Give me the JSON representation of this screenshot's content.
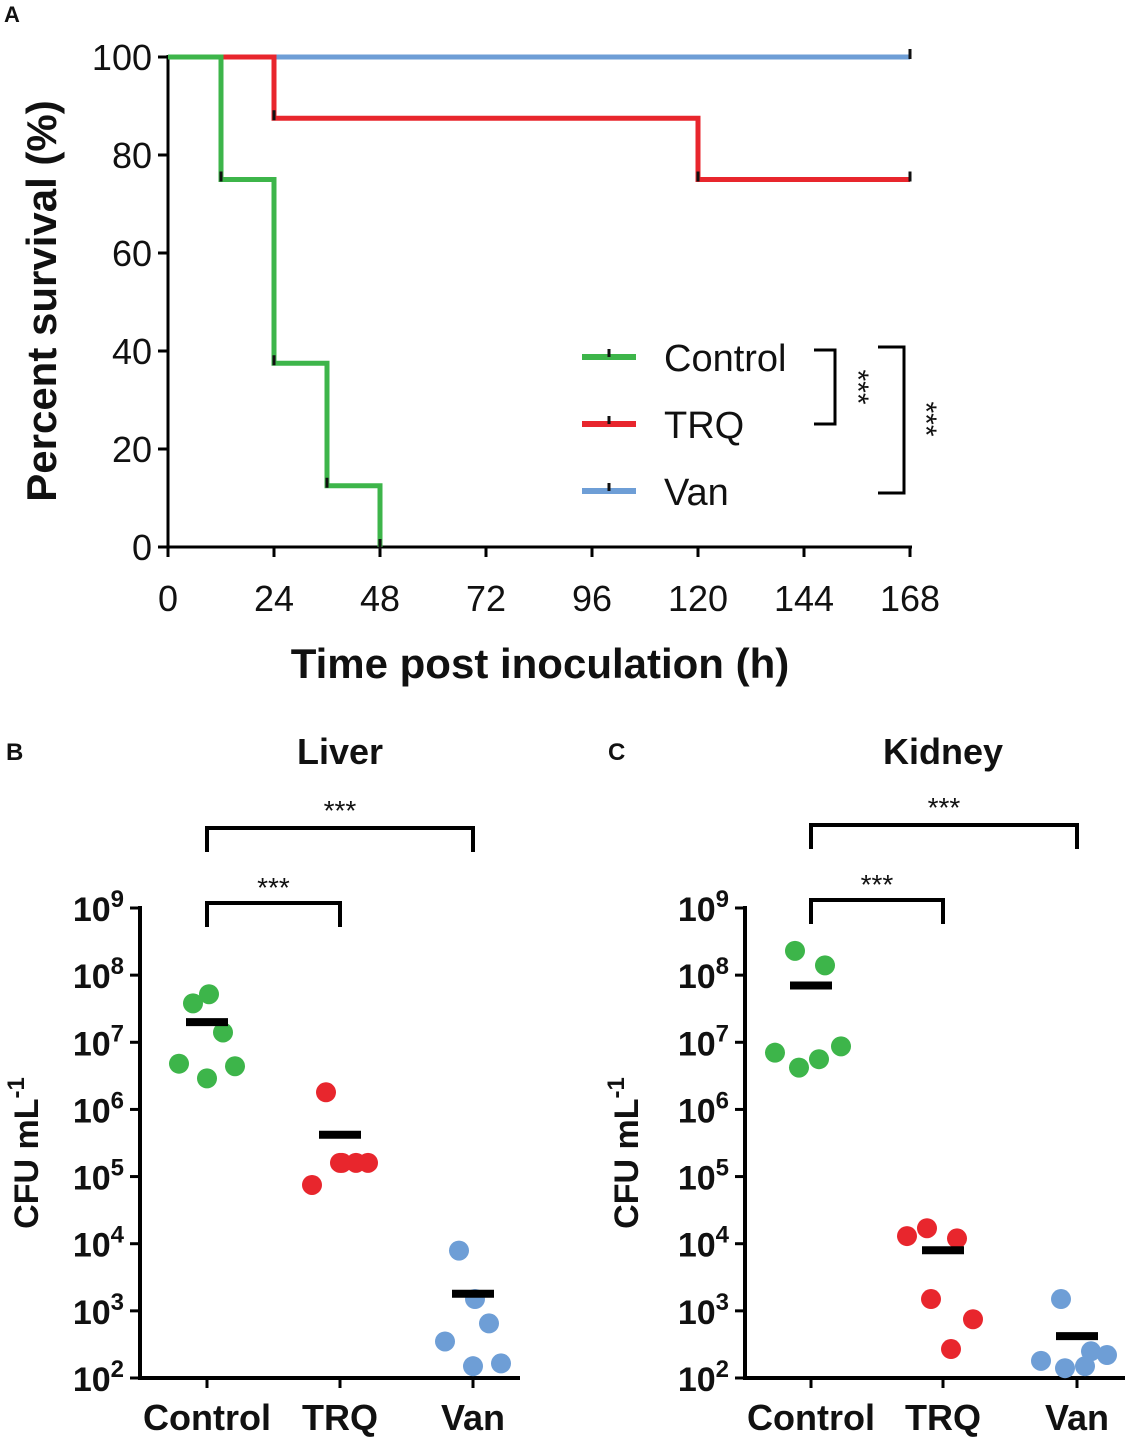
{
  "chart_data": [
    {
      "panel": "A",
      "type": "line",
      "subtype": "kaplan-meier",
      "title": "",
      "xlabel": "Time post inoculation (h)",
      "ylabel": "Percent survival (%)",
      "xlim": [
        0,
        168
      ],
      "ylim": [
        0,
        100
      ],
      "xticks": [
        0,
        24,
        48,
        72,
        96,
        120,
        144,
        168
      ],
      "yticks": [
        0,
        20,
        40,
        60,
        80,
        100
      ],
      "legend_position": "bottom-right",
      "series": [
        {
          "name": "Control",
          "color": "#3db54a",
          "x": [
            0,
            12,
            24,
            36,
            48
          ],
          "y": [
            100,
            75,
            37.5,
            12.5,
            0
          ],
          "censor_x": [
            12,
            24,
            36,
            48
          ]
        },
        {
          "name": "TRQ",
          "color": "#e8262d",
          "x": [
            0,
            24,
            120,
            168
          ],
          "y": [
            100,
            87.5,
            75,
            75
          ],
          "censor_x": [
            24,
            120,
            168
          ]
        },
        {
          "name": "Van",
          "color": "#6e9ed6",
          "x": [
            0,
            168
          ],
          "y": [
            100,
            100
          ],
          "censor_x": [
            168
          ]
        }
      ],
      "annotations": [
        {
          "between": [
            "Control",
            "TRQ"
          ],
          "label": "***"
        },
        {
          "between": [
            "Control",
            "Van"
          ],
          "label": "***"
        }
      ]
    },
    {
      "panel": "B",
      "type": "scatter",
      "title": "Liver",
      "ylabel": "CFU mL",
      "ylabel_superscript": "-1",
      "yscale": "log10",
      "ylim_exp": [
        2,
        9
      ],
      "ytick_base": "10",
      "yticks_exp": [
        "2",
        "3",
        "4",
        "5",
        "6",
        "7",
        "8",
        "9"
      ],
      "categories": [
        "Control",
        "TRQ",
        "Van"
      ],
      "series": [
        {
          "name": "Control",
          "color": "#3db54a",
          "values": [
            38000000,
            52000000,
            14000000,
            4800000,
            2900000,
            4400000
          ],
          "mean": 20000000
        },
        {
          "name": "TRQ",
          "color": "#e8262d",
          "values": [
            1800000,
            160000,
            160000,
            75000,
            160000,
            160000
          ],
          "mean": 420000
        },
        {
          "name": "Van",
          "color": "#6e9ed6",
          "values": [
            7900,
            1500,
            650,
            350,
            150,
            165
          ],
          "mean": 1800
        }
      ],
      "brackets": [
        {
          "from": "Control",
          "to": "TRQ",
          "label": "***"
        },
        {
          "from": "Control",
          "to": "Van",
          "label": "***"
        }
      ]
    },
    {
      "panel": "C",
      "type": "scatter",
      "title": "Kidney",
      "ylabel": "CFU mL",
      "ylabel_superscript": "-1",
      "yscale": "log10",
      "ylim_exp": [
        2,
        9
      ],
      "ytick_base": "10",
      "yticks_exp": [
        "2",
        "3",
        "4",
        "5",
        "6",
        "7",
        "8",
        "9"
      ],
      "categories": [
        "Control",
        "TRQ",
        "Van"
      ],
      "series": [
        {
          "name": "Control",
          "color": "#3db54a",
          "values": [
            230000000,
            140000000,
            7000000,
            4200000,
            5600000,
            8700000
          ],
          "mean": 70000000
        },
        {
          "name": "TRQ",
          "color": "#e8262d",
          "values": [
            17000,
            12000,
            13000,
            1500,
            270,
            750
          ],
          "mean": 8000
        },
        {
          "name": "Van",
          "color": "#6e9ed6",
          "values": [
            1500,
            250,
            180,
            140,
            150,
            220
          ],
          "mean": 420
        }
      ],
      "brackets": [
        {
          "from": "Control",
          "to": "TRQ",
          "label": "***"
        },
        {
          "from": "Control",
          "to": "Van",
          "label": "***"
        }
      ]
    }
  ]
}
